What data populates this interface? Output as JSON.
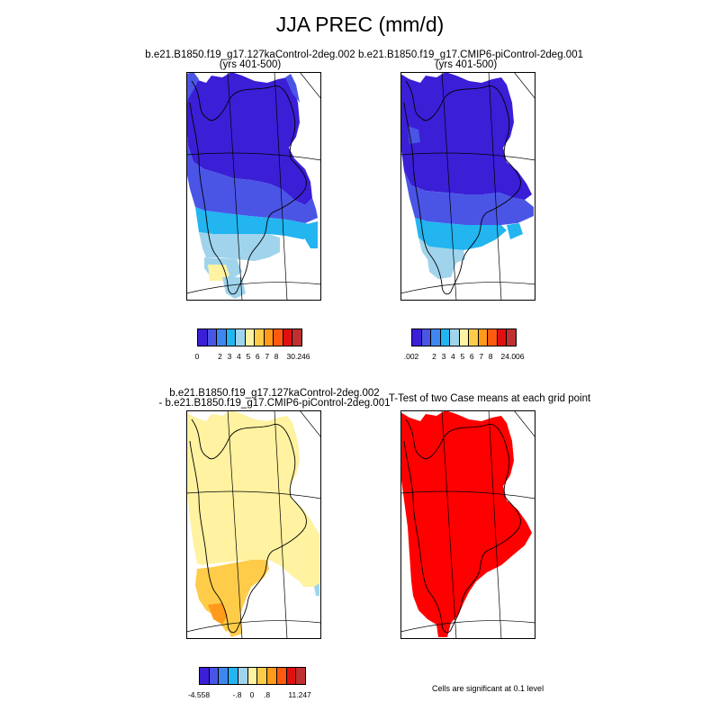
{
  "main_title": "JJA PREC (mm/d)",
  "panels": [
    {
      "title_line1": "b.e21.B1850.f19_g17.127kaControl-2deg.002",
      "title_line2": "(yrs 401-500)",
      "colorbar_labels": [
        "0",
        "2",
        "3",
        "4",
        "5",
        "6",
        "7",
        "8",
        "30.246"
      ],
      "colors": [
        "#3a1fd6",
        "#4a55e6",
        "#3f86f0",
        "#22b5f0",
        "#9fd4ec",
        "#fff2a0",
        "#ffcc4a",
        "#ff9a1a",
        "#ff5a10",
        "#e01010",
        "#c03030"
      ]
    },
    {
      "title_line1": "b.e21.B1850.f19_g17.CMIP6-piControl-2deg.001",
      "title_line2": "(yrs 401-500)",
      "colorbar_labels": [
        ".002",
        "2",
        "3",
        "4",
        "5",
        "6",
        "7",
        "8",
        "24.006"
      ],
      "colors": [
        "#3a1fd6",
        "#4a55e6",
        "#3f86f0",
        "#22b5f0",
        "#9fd4ec",
        "#fff2a0",
        "#ffcc4a",
        "#ff9a1a",
        "#ff5a10",
        "#e01010",
        "#c03030"
      ]
    },
    {
      "title_line1": "b.e21.B1850.f19_g17.127kaControl-2deg.002",
      "title_line2": "- b.e21.B1850.f19_g17.CMIP6-piControl-2deg.001",
      "colorbar_labels": [
        "-4.558",
        "-.8",
        "0",
        ".8",
        "11.247"
      ],
      "colors": [
        "#3a1fd6",
        "#4a55e6",
        "#3f86f0",
        "#22b5f0",
        "#9fd4ec",
        "#fff2a0",
        "#ffcc4a",
        "#ff9a1a",
        "#ff5a10",
        "#e01010",
        "#c03030"
      ]
    },
    {
      "title_line1": "T-Test of two Case means at each grid point",
      "note": "Cells are significant at 0.1 level"
    }
  ]
}
